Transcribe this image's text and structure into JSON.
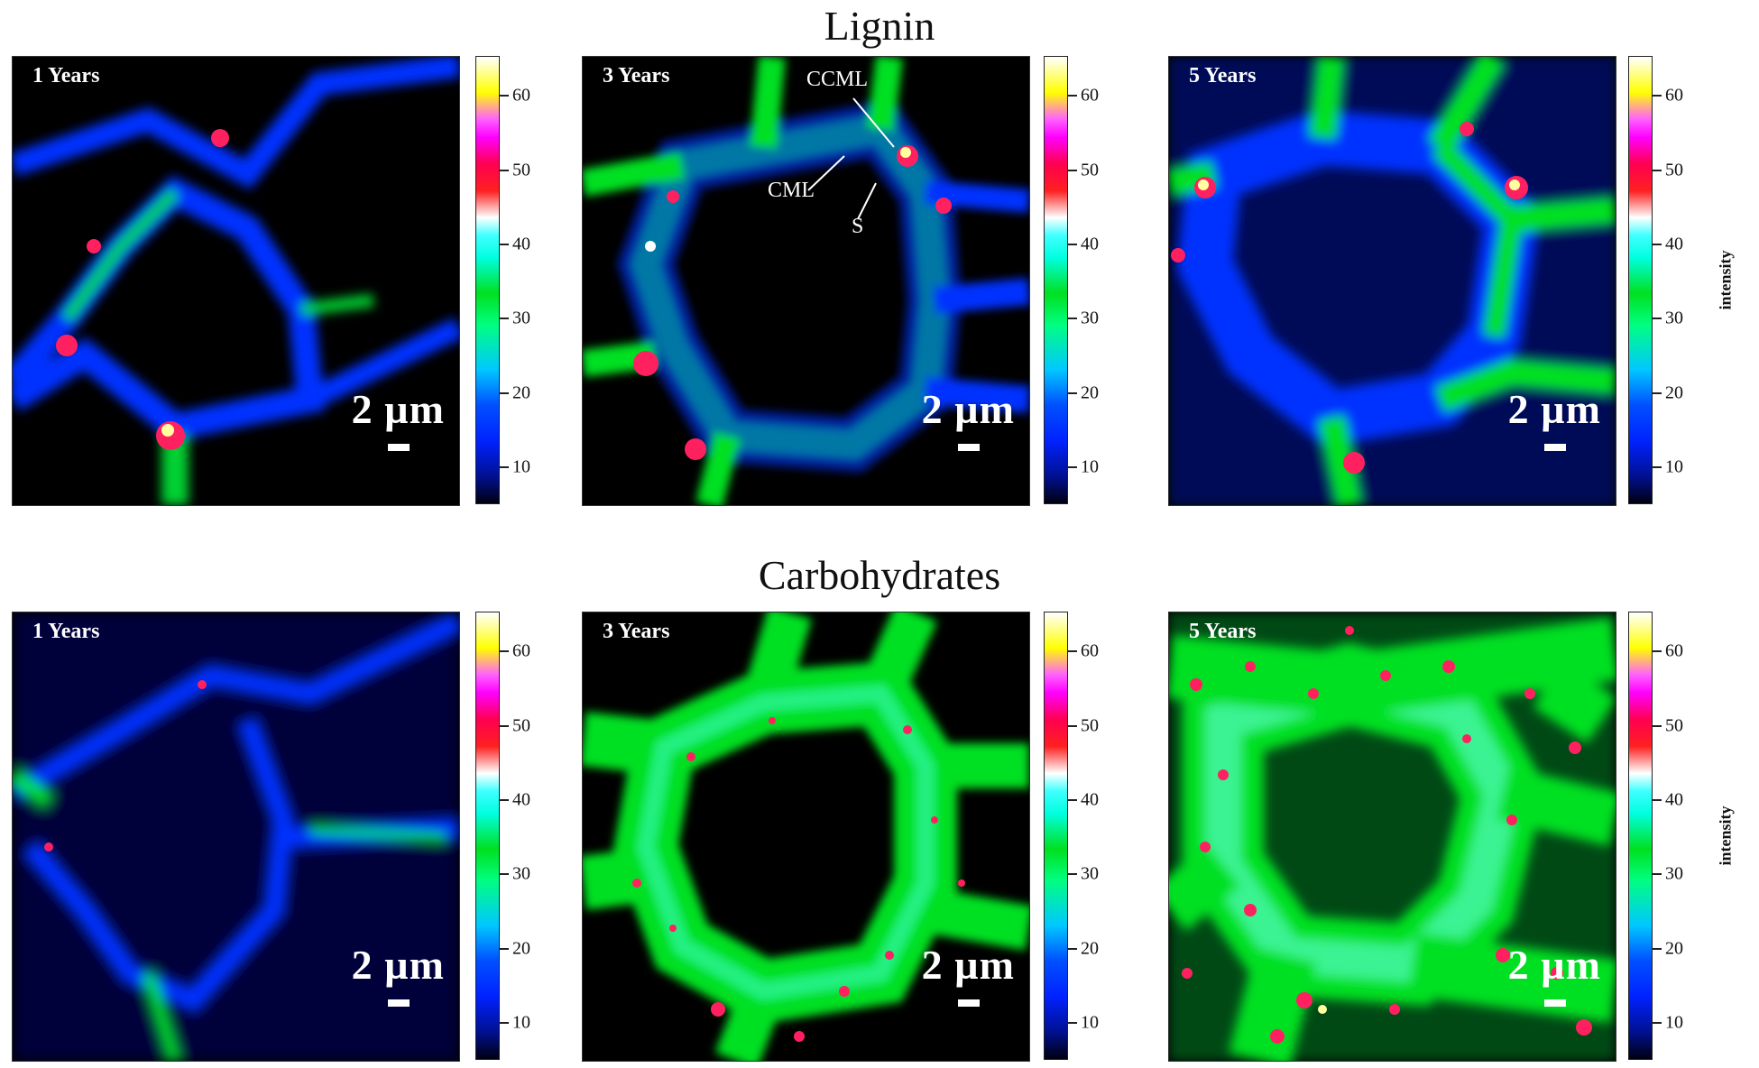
{
  "rows": [
    {
      "title": "Lignin",
      "panels": [
        {
          "label": "1 Years",
          "scale": "2 µm"
        },
        {
          "label": "3 Years",
          "scale": "2 µm",
          "annotations": [
            "CCML",
            "CML",
            "S"
          ]
        },
        {
          "label": "5 Years",
          "scale": "2 µm"
        }
      ],
      "colorbar_label": "intensity"
    },
    {
      "title": "Carbohydrates",
      "panels": [
        {
          "label": "1 Years",
          "scale": "2 µm"
        },
        {
          "label": "3 Years",
          "scale": "2 µm"
        },
        {
          "label": "5 Years",
          "scale": "2 µm"
        }
      ],
      "colorbar_label": "intensity"
    }
  ],
  "colorbar_ticks": [
    "60",
    "50",
    "40",
    "30",
    "20",
    "10"
  ],
  "colors": {
    "background": "#000000",
    "low": "#0022ff",
    "mid": "#00e020",
    "high": "#ff2060",
    "peak": "#ffffa0"
  }
}
